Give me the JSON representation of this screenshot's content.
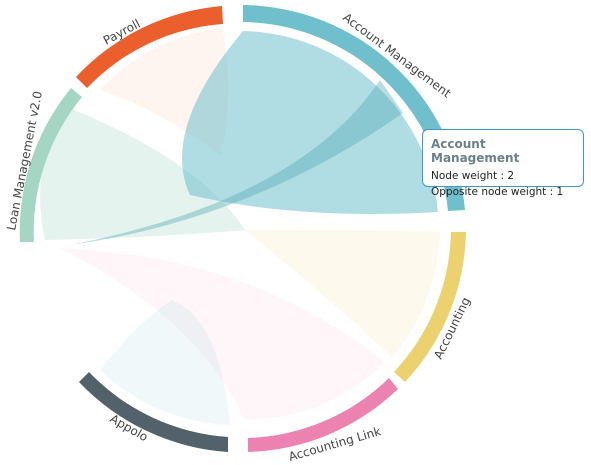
{
  "chart_data": {
    "type": "chord",
    "nodes": [
      {
        "id": "account-management",
        "name": "Account Management",
        "color": "#6fbfcc"
      },
      {
        "id": "accounting",
        "name": "Accounting",
        "color": "#ecd26f"
      },
      {
        "id": "accounting-link",
        "name": "Accounting Link",
        "color": "#eb82b0"
      },
      {
        "id": "appolo",
        "name": "Appolo",
        "color": "#53616a"
      },
      {
        "id": "loan-management",
        "name": "Loan Management v2.0",
        "color": "#a5d6c3"
      },
      {
        "id": "payroll",
        "name": "Payroll",
        "color": "#ea5f2c"
      }
    ]
  },
  "tooltip": {
    "title": "Account Management",
    "node_weight_label": "Node weight",
    "node_weight": "2",
    "opposite_weight_label": "Opposite node weight",
    "opposite_weight": "1"
  }
}
